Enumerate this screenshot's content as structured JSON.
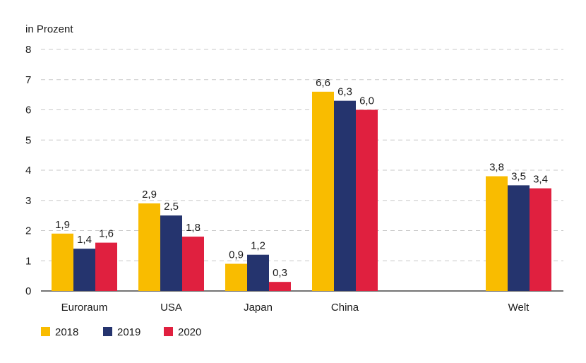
{
  "chart_data": {
    "type": "bar",
    "unit_label": "in Prozent",
    "categories": [
      "Euroraum",
      "USA",
      "Japan",
      "China",
      "Welt"
    ],
    "series": [
      {
        "name": "2018",
        "color": "#F9BC00",
        "values": [
          1.9,
          2.9,
          0.9,
          6.6,
          3.8
        ],
        "labels": [
          "1,9",
          "2,9",
          "0,9",
          "6,6",
          "3,8"
        ]
      },
      {
        "name": "2019",
        "color": "#25346E",
        "values": [
          1.4,
          2.5,
          1.2,
          6.3,
          3.5
        ],
        "labels": [
          "1,4",
          "2,5",
          "1,2",
          "6,3",
          "3,5"
        ]
      },
      {
        "name": "2020",
        "color": "#E0203F",
        "values": [
          1.6,
          1.8,
          0.3,
          6.0,
          3.4
        ],
        "labels": [
          "1,6",
          "1,8",
          "0,3",
          "6,0",
          "3,4"
        ]
      }
    ],
    "y_ticks": [
      "0",
      "1",
      "2",
      "3",
      "4",
      "5",
      "6",
      "7",
      "8"
    ],
    "ylim": [
      0,
      8
    ],
    "grid": true,
    "grid_style": "dashed",
    "legend_position": "bottom-left"
  }
}
